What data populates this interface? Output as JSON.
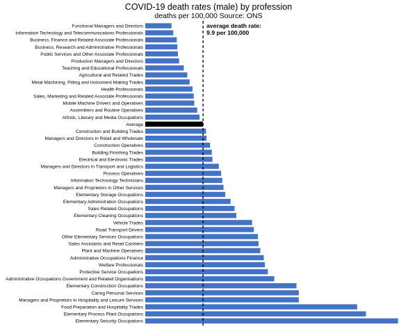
{
  "chart_data": {
    "type": "bar",
    "orientation": "horizontal",
    "title": "COVID-19 death rates (male) by profession",
    "subtitle": "deaths per 100,000 Source: ONS",
    "xlabel": "",
    "ylabel": "",
    "xlim": [
      0,
      45
    ],
    "x_ticks": [
      "0.0",
      "5.0",
      "10.0",
      "15.0",
      "20.0",
      "25.0",
      "30.0",
      "35.0",
      "40.0",
      "45.0"
    ],
    "grid": false,
    "bar_color": "#4472c4",
    "highlight_color": "#000000",
    "highlight_category": "Average",
    "reference_line": {
      "value": 9.9,
      "style": "dashed",
      "label_line1": "average death rate:",
      "label_line2": "9.9 per 100,000"
    },
    "categories": [
      "Functional Managers and Directors",
      "Information Technology and Telecommunications Professionals",
      "Business, Finance and Related Associate Professionals",
      "Business, Research and Administrative Professionals",
      "Public Services and Other Associate Professionals",
      "Production Managers and Directors",
      "Teaching and Educational Professionals",
      "Agricultural and Related Trades",
      "Metal Machining, Fitting and Instrument Making Trades",
      "Health Professionals",
      "Sales, Marketing and Related Associate Professionals",
      "Mobile Machine Drivers and Operatives",
      "Assemblers and Routine Operatives",
      "Artistic, Literary and Media Occupations",
      "Average",
      "Construction and Building Trades",
      "Managers and Directors in Retail and Wholesale",
      "Construction Operatives",
      "Building Finishing Trades",
      "Electrical and Electronic Trades",
      "Managers and Directors in Transport and Logistics",
      "Process Operatives",
      "Information Technology Technicians",
      "Managers and Proprietors in Other Services",
      "Elementary Storage Occupations",
      "Elementary Administration Occupations",
      "Sales Related Occupations",
      "Elementary Cleaning Occupations",
      "Vehicle Trades",
      "Road Transport Drivers",
      "Other Elementary Services Occupations",
      "Sales Assistants and Retail Cashiers",
      "Plant and Machine Operatives",
      "Administrative Occupations Finance",
      "Welfare Professionals",
      "Protective Service Occupations",
      "Administrative Occupations Government and Related Organisations",
      "Elementary Construction Occupations",
      "Caring Personal Services",
      "Managers and Proprietors in Hospitality and Leisure Services",
      "Food Preparation and Hospitality Trades",
      "Elementary Process Plant Occupations",
      "Elementary Security Occupations"
    ],
    "values": [
      4.5,
      4.8,
      5.4,
      5.5,
      5.6,
      5.8,
      6.6,
      7.2,
      7.6,
      8.1,
      8.3,
      8.4,
      8.9,
      9.3,
      9.9,
      10.4,
      10.5,
      11.1,
      11.4,
      11.5,
      12.6,
      13.0,
      13.2,
      13.4,
      13.7,
      14.6,
      15.3,
      15.6,
      18.3,
      18.6,
      19.3,
      19.4,
      19.7,
      20.3,
      20.5,
      21.0,
      22.1,
      25.9,
      26.3,
      26.3,
      36.3,
      37.8,
      43.3
    ]
  }
}
